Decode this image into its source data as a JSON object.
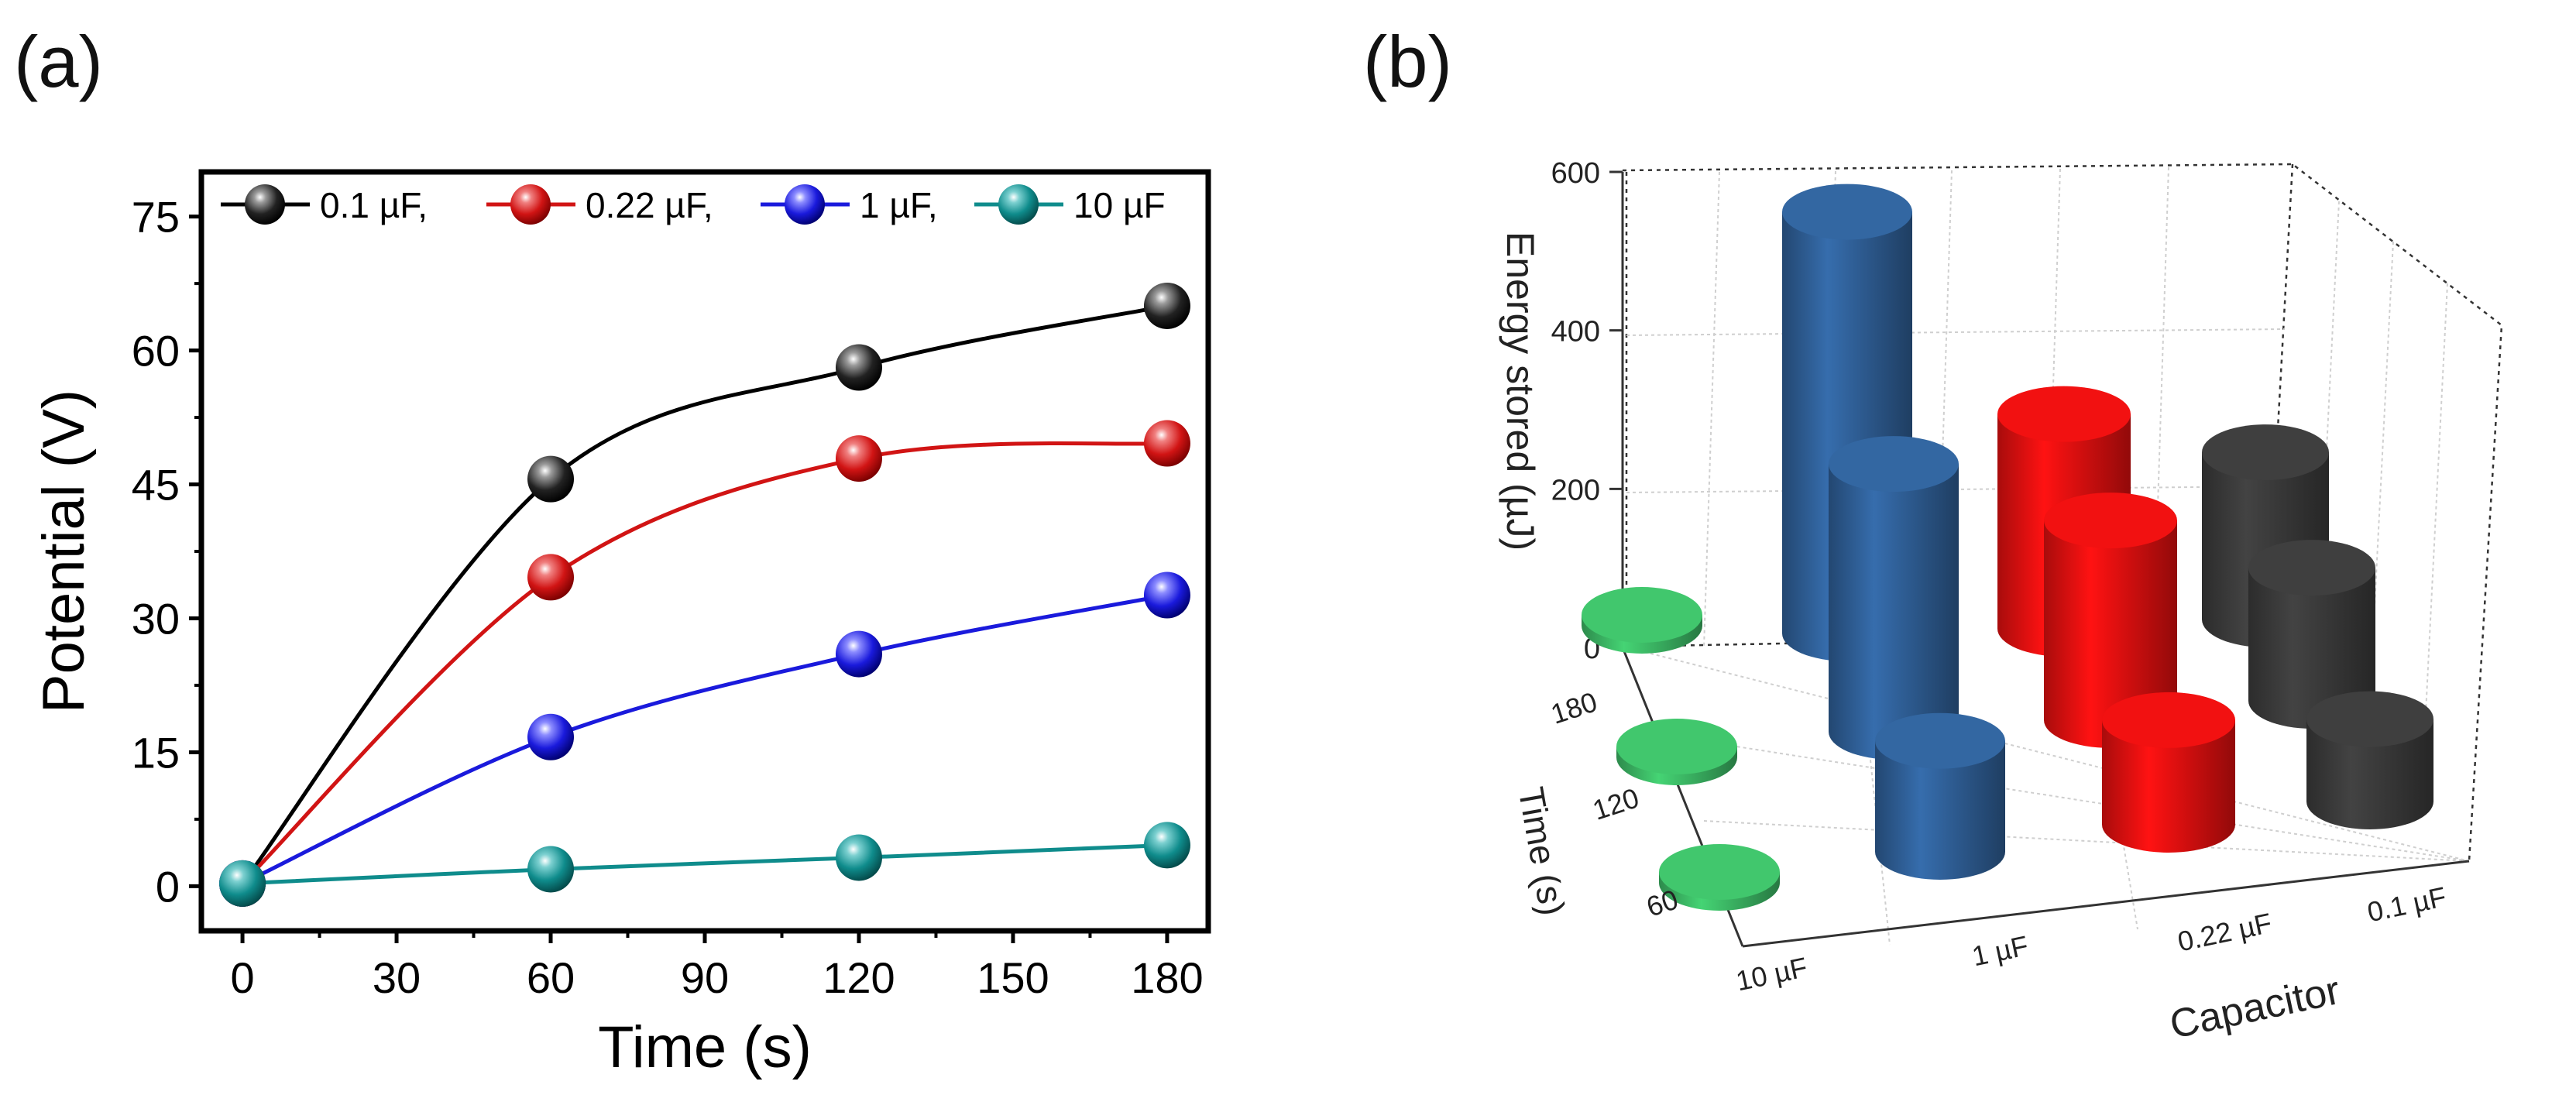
{
  "panels": {
    "a": "(a)",
    "b": "(b)"
  },
  "chart_data": [
    {
      "type": "line",
      "panel": "(a)",
      "title": "",
      "xlabel": "Time (s)",
      "ylabel": "Potential (V)",
      "xlim": [
        -8,
        188
      ],
      "ylim": [
        -5,
        80
      ],
      "xticks": [
        0,
        30,
        60,
        90,
        120,
        150,
        180
      ],
      "yticks": [
        0,
        15,
        30,
        45,
        60,
        75
      ],
      "legend_position": "top",
      "x": [
        0,
        60,
        120,
        180
      ],
      "series": [
        {
          "name": "0.1 µF,",
          "legend": "0.1 µF,",
          "color": "#000000",
          "values": [
            0.3,
            45.6,
            58.1,
            65.0
          ]
        },
        {
          "name": "0.22 µF,",
          "legend": "0.22 µF,",
          "color": "#d11414",
          "values": [
            0.3,
            34.6,
            47.9,
            49.6
          ]
        },
        {
          "name": "1 µF,",
          "legend": "1 µF,",
          "color": "#1a1adc",
          "values": [
            0.3,
            16.7,
            26.0,
            32.6
          ]
        },
        {
          "name": "10 µF",
          "legend": "10 µF",
          "color": "#0f8c8c",
          "values": [
            0.3,
            1.9,
            3.2,
            4.6
          ]
        }
      ]
    },
    {
      "type": "bar3d",
      "panel": "(b)",
      "zlabel": "Energy stored (µJ)",
      "xlabel": "Capacitor",
      "ylabel": "Time (s)",
      "zticks": [
        "0",
        "200",
        "400",
        "600"
      ],
      "zlim": [
        0,
        600
      ],
      "capacitors": [
        "10 µF",
        "1 µF",
        "0.22 µF",
        "0.1 µF"
      ],
      "times": [
        "60",
        "120",
        "180"
      ],
      "colors": {
        "10 µF": "#3cb865",
        "1 µF": "#2f5f96",
        "0.22 µF": "#e01010",
        "0.1 µF": "#3a3a3a"
      },
      "values": {
        "10 µF": [
          2,
          5,
          11
        ],
        "1 µF": [
          140,
          338,
          532
        ],
        "0.22 µF": [
          132,
          252,
          271
        ],
        "0.1 µF": [
          104,
          168,
          211
        ]
      }
    }
  ]
}
